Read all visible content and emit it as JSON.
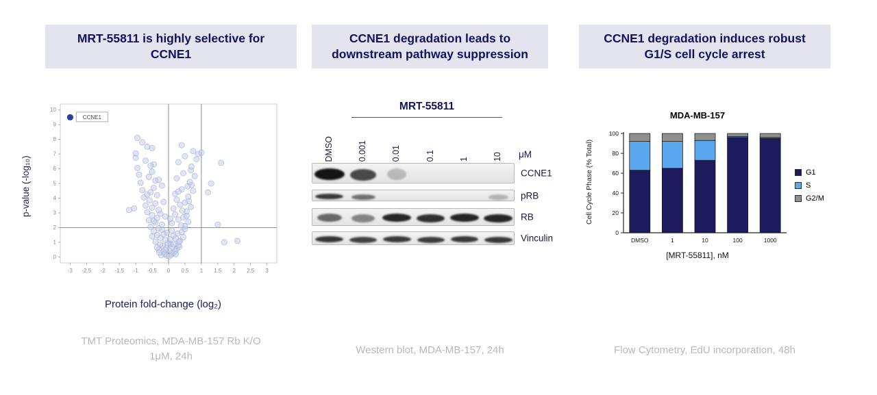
{
  "panels": {
    "selectivity": {
      "header": "MRT-55811 is highly selective for CCNE1",
      "caption_line1": "TMT Proteomics, MDA-MB-157 Rb K/O",
      "caption_line2": "1μM, 24h"
    },
    "western": {
      "header": "CCNE1 degradation leads to downstream pathway suppression",
      "caption": "Western blot, MDA-MB-157, 24h"
    },
    "cell_cycle": {
      "header": "CCNE1 degradation induces robust G1/S cell cycle arrest",
      "caption": "Flow Cytometry, EdU incorporation, 48h"
    }
  },
  "colors": {
    "header_bg": "#e4e4ef",
    "header_text": "#12125e",
    "caption_text": "#b9b9b9"
  },
  "chart_data": [
    {
      "type": "scatter",
      "subtype": "volcano",
      "title": "",
      "xlabel": "Protein fold-change (log₂)",
      "ylabel": "p-value (-log₁₀)",
      "xlim": [
        -3.3,
        3.3
      ],
      "ylim": [
        -0.4,
        10.4
      ],
      "x_ticks": [
        -3,
        -2.5,
        -2,
        -1.5,
        -1,
        -0.5,
        0,
        0.5,
        1,
        1.5,
        2,
        2.5,
        3
      ],
      "y_ticks": [
        0,
        1,
        2,
        3,
        4,
        5,
        6,
        7,
        8,
        9,
        10
      ],
      "grid": false,
      "ref_lines": {
        "vertical": [
          0,
          1
        ],
        "horizontal": [
          2
        ]
      },
      "point_color": "#c7cee9",
      "highlight": {
        "label": "CCNE1",
        "x": -3,
        "y": 9.5,
        "color": "#2b3f9e"
      },
      "points": [
        [
          -0.05,
          0.1
        ],
        [
          0.08,
          0.15
        ],
        [
          -0.12,
          0.22
        ],
        [
          0.18,
          0.3
        ],
        [
          -0.22,
          0.12
        ],
        [
          0.03,
          0.45
        ],
        [
          -0.3,
          0.5
        ],
        [
          0.25,
          0.55
        ],
        [
          -0.08,
          0.6
        ],
        [
          0.12,
          0.68
        ],
        [
          -0.18,
          0.75
        ],
        [
          0.3,
          0.8
        ],
        [
          -0.26,
          0.85
        ],
        [
          0.06,
          0.9
        ],
        [
          -0.02,
          0.95
        ],
        [
          0.2,
          0.4
        ],
        [
          -0.15,
          0.35
        ],
        [
          0.1,
          0.25
        ],
        [
          -0.35,
          0.65
        ],
        [
          0.33,
          0.7
        ],
        [
          0.02,
          0.05
        ],
        [
          -0.1,
          0.5
        ],
        [
          0.15,
          0.85
        ],
        [
          -0.28,
          0.3
        ],
        [
          0.22,
          0.18
        ],
        [
          -0.4,
          1.05
        ],
        [
          0.35,
          1.1
        ],
        [
          -0.1,
          1.15
        ],
        [
          0.05,
          1.2
        ],
        [
          -0.25,
          1.3
        ],
        [
          0.45,
          1.35
        ],
        [
          -0.5,
          1.4
        ],
        [
          0.15,
          1.45
        ],
        [
          -0.35,
          1.5
        ],
        [
          0.28,
          1.6
        ],
        [
          -0.05,
          1.65
        ],
        [
          0.4,
          1.7
        ],
        [
          -0.45,
          1.75
        ],
        [
          0.1,
          1.8
        ],
        [
          -0.2,
          1.85
        ],
        [
          0.5,
          1.9
        ],
        [
          -0.3,
          1.95
        ],
        [
          0.22,
          1.25
        ],
        [
          -0.15,
          1.55
        ],
        [
          0.32,
          1.05
        ],
        [
          -0.55,
          2.05
        ],
        [
          0.5,
          2.1
        ],
        [
          -0.2,
          2.2
        ],
        [
          0.1,
          2.3
        ],
        [
          -0.4,
          2.35
        ],
        [
          0.6,
          2.4
        ],
        [
          -0.6,
          2.5
        ],
        [
          0.3,
          2.55
        ],
        [
          -0.35,
          2.65
        ],
        [
          0.45,
          2.7
        ],
        [
          -0.1,
          2.75
        ],
        [
          0.55,
          2.8
        ],
        [
          -0.5,
          2.85
        ],
        [
          0.2,
          2.9
        ],
        [
          -0.25,
          2.95
        ],
        [
          0.38,
          2.15
        ],
        [
          -0.45,
          2.45
        ],
        [
          0.05,
          2.6
        ],
        [
          -0.65,
          3.05
        ],
        [
          0.55,
          3.1
        ],
        [
          -0.3,
          3.2
        ],
        [
          0.15,
          3.3
        ],
        [
          -0.5,
          3.35
        ],
        [
          0.68,
          3.4
        ],
        [
          -0.7,
          3.5
        ],
        [
          0.35,
          3.55
        ],
        [
          -0.4,
          3.65
        ],
        [
          0.5,
          3.7
        ],
        [
          -0.15,
          3.75
        ],
        [
          0.62,
          3.8
        ],
        [
          -0.58,
          3.85
        ],
        [
          0.25,
          3.9
        ],
        [
          -1.05,
          3.3
        ],
        [
          0.42,
          3.15
        ],
        [
          -0.75,
          4.05
        ],
        [
          0.6,
          4.1
        ],
        [
          -0.35,
          4.2
        ],
        [
          0.2,
          4.3
        ],
        [
          -0.55,
          4.4
        ],
        [
          0.75,
          4.5
        ],
        [
          -0.8,
          4.55
        ],
        [
          0.4,
          4.6
        ],
        [
          -0.45,
          4.7
        ],
        [
          0.58,
          4.8
        ],
        [
          -0.2,
          4.85
        ],
        [
          0.7,
          4.9
        ],
        [
          -0.65,
          4.25
        ],
        [
          0.3,
          4.45
        ],
        [
          -0.85,
          5.05
        ],
        [
          0.65,
          5.1
        ],
        [
          -0.4,
          5.2
        ],
        [
          0.25,
          5.35
        ],
        [
          -0.6,
          5.45
        ],
        [
          0.8,
          5.5
        ],
        [
          -0.9,
          5.6
        ],
        [
          0.45,
          5.7
        ],
        [
          -0.5,
          5.8
        ],
        [
          0.68,
          5.9
        ],
        [
          1.3,
          5.0
        ],
        [
          -0.3,
          5.25
        ],
        [
          -0.95,
          6.05
        ],
        [
          0.7,
          6.15
        ],
        [
          -0.45,
          6.3
        ],
        [
          0.3,
          6.45
        ],
        [
          -0.7,
          6.55
        ],
        [
          0.85,
          6.65
        ],
        [
          -1.0,
          6.75
        ],
        [
          0.5,
          6.85
        ],
        [
          1.6,
          6.4
        ],
        [
          -0.55,
          6.2
        ],
        [
          -1.0,
          7.05
        ],
        [
          0.75,
          7.2
        ],
        [
          -0.5,
          7.4
        ],
        [
          0.4,
          7.6
        ],
        [
          -0.8,
          7.8
        ],
        [
          0.9,
          7.0
        ],
        [
          -0.65,
          7.5
        ],
        [
          1.0,
          7.1
        ],
        [
          -0.95,
          8.1
        ],
        [
          2.1,
          1.1
        ],
        [
          1.5,
          2.2
        ],
        [
          1.7,
          1.0
        ],
        [
          -1.2,
          3.2
        ],
        [
          1.2,
          4.4
        ]
      ]
    },
    {
      "type": "table",
      "subtype": "western_blot",
      "title": "MRT-55811",
      "unit_label": "μM",
      "lane_labels": [
        "DMSO",
        "0.001",
        "0.01",
        "0.1",
        "1",
        "10"
      ],
      "rows": [
        {
          "label": "CCNE1",
          "intensities": [
            1.0,
            0.72,
            0.12,
            0,
            0,
            0
          ]
        },
        {
          "label": "pRB",
          "intensities": [
            0.8,
            0.5,
            0,
            0,
            0,
            0.15
          ]
        },
        {
          "label": "RB",
          "intensities": [
            0.55,
            0.4,
            0.9,
            0.85,
            0.9,
            0.9
          ]
        },
        {
          "label": "Vinculin",
          "intensities": [
            0.82,
            0.75,
            0.8,
            0.78,
            0.8,
            0.8
          ]
        }
      ]
    },
    {
      "type": "bar",
      "stacked": true,
      "title": "MDA-MB-157",
      "xlabel": "[MRT-55811], nM",
      "ylabel": "Cell Cycle Phase (% Total)",
      "categories": [
        "DMSO",
        "1",
        "10",
        "100",
        "1000"
      ],
      "series": [
        {
          "name": "G1",
          "color": "#1e1a5e",
          "values": [
            63,
            65,
            73,
            96,
            95
          ]
        },
        {
          "name": "S",
          "color": "#5ba7f0",
          "values": [
            29,
            27,
            20,
            1,
            1
          ]
        },
        {
          "name": "G2/M",
          "color": "#8f8f8f",
          "values": [
            8,
            8,
            7,
            3,
            4
          ]
        }
      ],
      "ylim": [
        0,
        100
      ],
      "y_ticks": [
        0,
        20,
        40,
        60,
        80,
        100
      ],
      "legend_position": "right"
    }
  ]
}
